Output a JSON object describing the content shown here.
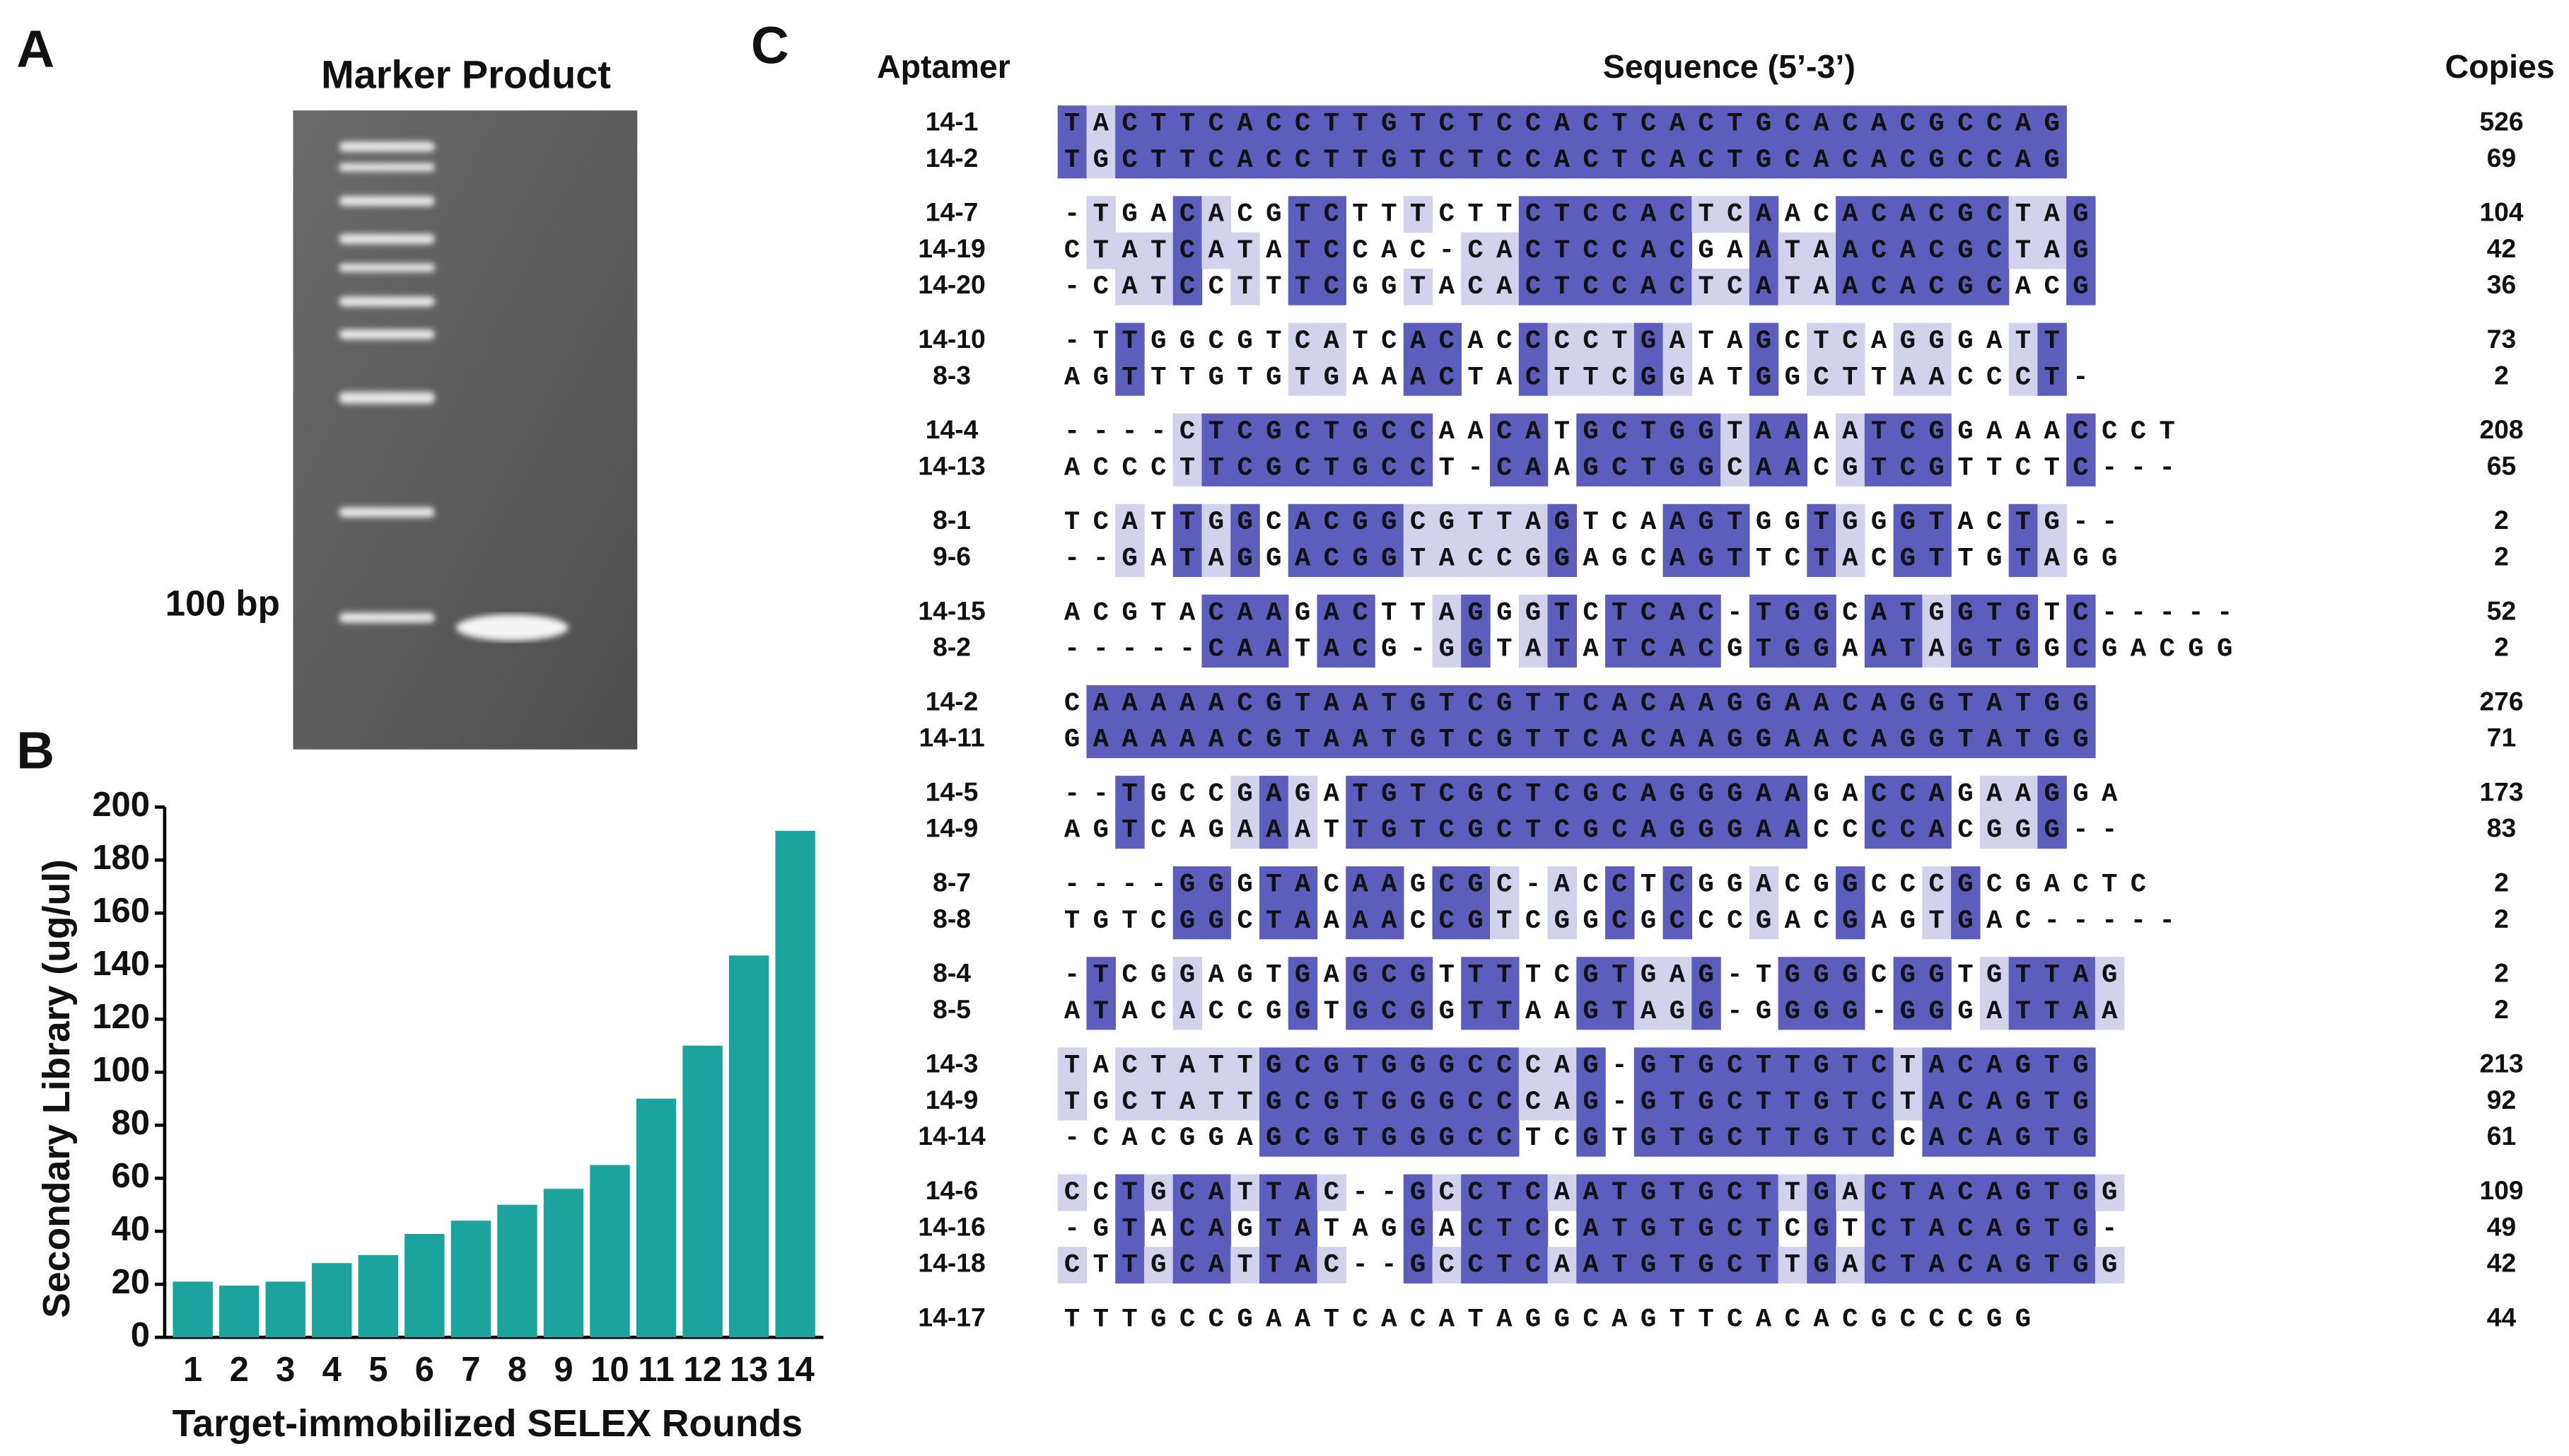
{
  "panel_a": {
    "label": "A",
    "header": "Marker Product",
    "band_label": "100 bp"
  },
  "chart_data": {
    "type": "bar",
    "panel_label": "B",
    "categories": [
      "1",
      "2",
      "3",
      "4",
      "5",
      "6",
      "7",
      "8",
      "9",
      "10",
      "11",
      "12",
      "13",
      "14"
    ],
    "values": [
      21,
      19.5,
      21,
      28,
      31,
      39,
      44,
      50,
      56,
      65,
      90,
      110,
      144,
      191
    ],
    "color": "#1ba39d",
    "ylim": [
      0,
      200
    ],
    "yticks": [
      0,
      20,
      40,
      60,
      80,
      100,
      120,
      140,
      160,
      180,
      200
    ],
    "xlabel": "Target-immobilized SELEX Rounds",
    "ylabel": "Secondary Library  (ug/ul)"
  },
  "panel_c": {
    "label": "C",
    "headers": {
      "aptamer": "Aptamer",
      "sequence": "Sequence (5’-3’)",
      "copies": "Copies"
    },
    "groups": [
      {
        "rows": [
          {
            "name": "14-1",
            "sequence": "TACTTCACCTTGTCTCCACTCACTGCACACGCCAG",
            "copies": 526
          },
          {
            "name": "14-2",
            "sequence": "TGCTTCACCTTGTCTCCACTCACTGCACACGCCAG",
            "copies": 69
          }
        ]
      },
      {
        "rows": [
          {
            "name": "14-7",
            "sequence": "-TGACACGTCTTTCTTCTCCACTCAACACACGCTAG",
            "copies": 104
          },
          {
            "name": "14-19",
            "sequence": "CTATCATATCCAC-CACTCCACGAATAACACGCTAG",
            "copies": 42
          },
          {
            "name": "14-20",
            "sequence": "-CATCCTTTCGGTACACTCCACTCATAACACGCACG",
            "copies": 36
          }
        ]
      },
      {
        "rows": [
          {
            "name": "14-10",
            "sequence": "-TTGGCGTCATCACACCCCTGATAGCTCAGGGATT",
            "copies": 73
          },
          {
            "name": "8-3",
            "sequence": "AGTTTGTGTGAAACTACTTCGGATGGCTTAACCCT-",
            "copies": 2
          }
        ]
      },
      {
        "rows": [
          {
            "name": "14-4",
            "sequence": "----CTCGCTGCCAACATGCTGGTAAAATCGGAAACCCT",
            "copies": 208
          },
          {
            "name": "14-13",
            "sequence": "ACCCTTCGCTGCCT-CAAGCTGGCAACGTCGTTCTC---",
            "copies": 65
          }
        ]
      },
      {
        "rows": [
          {
            "name": "8-1",
            "sequence": "TCATTGGCACGGCGTTAGTCAAGTGGTGGGTACTG--",
            "copies": 2
          },
          {
            "name": "9-6",
            "sequence": "--GATAGGACGGTACCGGAGCAGTTCTACGTTGTAGG",
            "copies": 2
          }
        ]
      },
      {
        "rows": [
          {
            "name": "14-15",
            "sequence": "ACGTACAAGACTTAGGGTCTCAC-TGGCATGGTGTC-----",
            "copies": 52
          },
          {
            "name": "8-2",
            "sequence": "-----CAATACG-GGTATATCACGTGGAATAGTGGCGACGG",
            "copies": 2
          }
        ]
      },
      {
        "rows": [
          {
            "name": "14-2",
            "sequence": "CAAAAACGTAATGTCGTTCACAAGGAACAGGTATGG",
            "copies": 276
          },
          {
            "name": "14-11",
            "sequence": "GAAAAACGTAATGTCGTTCACAAGGAACAGGTATGG",
            "copies": 71
          }
        ]
      },
      {
        "rows": [
          {
            "name": "14-5",
            "sequence": "--TGCCGAGATGTCGCTCGCAGGGAAGACCAGAAGGA",
            "copies": 173
          },
          {
            "name": "14-9",
            "sequence": "AGTCAGAAATTGTCGCTCGCAGGGAACCCCACGGG--",
            "copies": 83
          }
        ]
      },
      {
        "rows": [
          {
            "name": "8-7",
            "sequence": "----GGGTACAAGCGC-ACCTCGGACGGCCCGCGACTC",
            "copies": 2
          },
          {
            "name": "8-8",
            "sequence": "TGTCGGCTAAAACCGTCGGCGCCCGACGAGTGAC-----",
            "copies": 2
          }
        ]
      },
      {
        "rows": [
          {
            "name": "8-4",
            "sequence": "-TCGGAGTGAGCGTTTTCGTGAG-TGGGCGGTGTTAG",
            "copies": 2
          },
          {
            "name": "8-5",
            "sequence": "ATACACCGGTGCGGTTAAGTAGG-GGGG-GGGATTAA",
            "copies": 2
          }
        ]
      },
      {
        "rows": [
          {
            "name": "14-3",
            "sequence": "TACTATTGCGTGGGCCCAG-GTGCTTGTCTACAGTG",
            "copies": 213
          },
          {
            "name": "14-9",
            "sequence": "TGCTATTGCGTGGGCCCAG-GTGCTTGTCTACAGTG",
            "copies": 92
          },
          {
            "name": "14-14",
            "sequence": "-CACGGAGCGTGGGCCTCGTGTGCTTGTCCACAGTG",
            "copies": 61
          }
        ]
      },
      {
        "rows": [
          {
            "name": "14-6",
            "sequence": "CCTGCATTAC--GCCTCAATGTGCTTGACTACAGTGG",
            "copies": 109
          },
          {
            "name": "14-16",
            "sequence": "-GTACAGTATAGGACTCCATGTGCTCGTCTACAGTG-",
            "copies": 49
          },
          {
            "name": "14-18",
            "sequence": "CTTGCATTAC--GCCTCAATGTGCTTGACTACAGTGG",
            "copies": 42
          }
        ]
      },
      {
        "rows": [
          {
            "name": "14-17",
            "sequence": "TTTGCCGAATCACATAGGCAGTTCACACGCCCGG",
            "copies": 44
          }
        ]
      }
    ]
  }
}
